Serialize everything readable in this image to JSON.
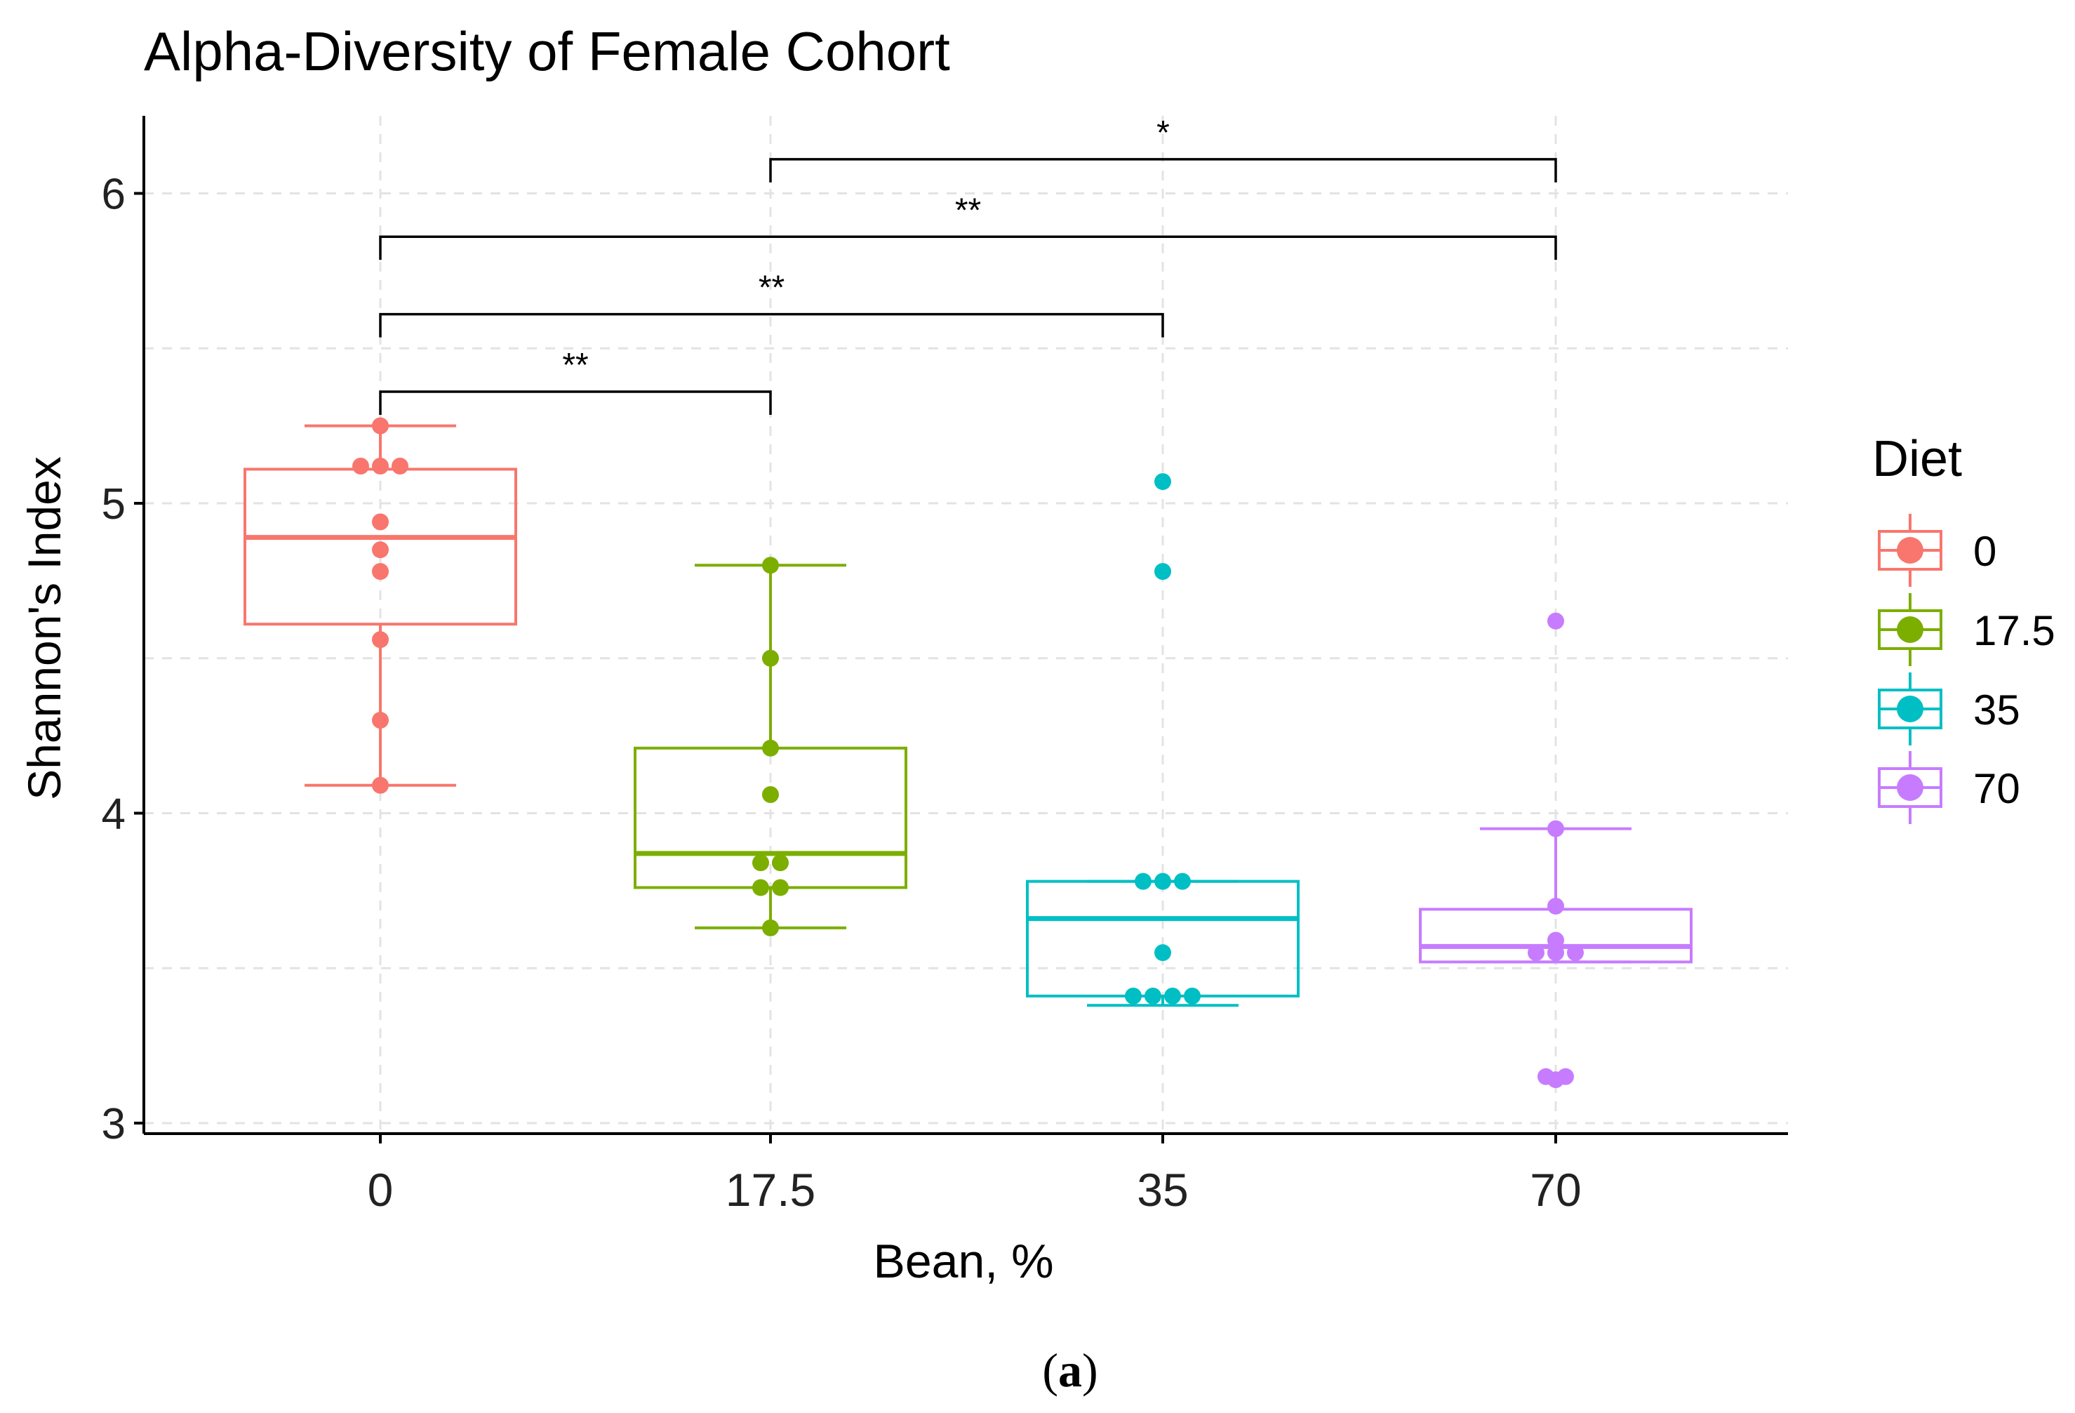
{
  "chart_data": {
    "type": "box",
    "title": "Alpha-Diversity of Female Cohort",
    "xlabel": "Bean, %",
    "ylabel": "Shannon's Index",
    "ylim": [
      2.97,
      6.27
    ],
    "yticks": [
      3,
      4,
      5,
      6
    ],
    "grid": true,
    "categories": [
      "0",
      "17.5",
      "35",
      "70"
    ],
    "legend": {
      "title": "Diet",
      "position": "right",
      "labels": [
        "0",
        "17.5",
        "35",
        "70"
      ]
    },
    "colors": [
      "#F8766D",
      "#7CAE00",
      "#00BFC4",
      "#C77CFF"
    ],
    "boxes": [
      {
        "category": "0",
        "whisker_low": 4.09,
        "q1": 4.61,
        "median": 4.89,
        "q3": 5.11,
        "whisker_high": 5.25,
        "points": [
          5.25,
          5.12,
          5.12,
          5.12,
          4.94,
          4.85,
          4.78,
          4.56,
          4.3,
          4.09
        ]
      },
      {
        "category": "17.5",
        "whisker_low": 3.63,
        "q1": 3.76,
        "median": 3.87,
        "q3": 4.21,
        "whisker_high": 4.8,
        "points": [
          4.8,
          4.5,
          4.21,
          4.06,
          3.84,
          3.84,
          3.76,
          3.76,
          3.63
        ]
      },
      {
        "category": "35",
        "whisker_low": 3.38,
        "q1": 3.41,
        "median": 3.66,
        "q3": 3.78,
        "whisker_high": 3.78,
        "points": [
          5.07,
          4.78,
          3.78,
          3.78,
          3.78,
          3.55,
          3.41,
          3.41,
          3.41,
          3.41
        ]
      },
      {
        "category": "70",
        "whisker_low": 3.52,
        "q1": 3.52,
        "median": 3.57,
        "q3": 3.69,
        "whisker_high": 3.95,
        "points": [
          4.62,
          3.95,
          3.7,
          3.59,
          3.55,
          3.55,
          3.55,
          3.15,
          3.15,
          3.14
        ]
      }
    ],
    "significance": [
      {
        "from": "0",
        "to": "17.5",
        "label": "**",
        "y": 5.36
      },
      {
        "from": "0",
        "to": "35",
        "label": "**",
        "y": 5.61
      },
      {
        "from": "0",
        "to": "70",
        "label": "**",
        "y": 5.86
      },
      {
        "from": "17.5",
        "to": "70",
        "label": "*",
        "y": 6.11
      }
    ]
  },
  "caption": {
    "open": "(",
    "letter": "a",
    "close": ")"
  }
}
